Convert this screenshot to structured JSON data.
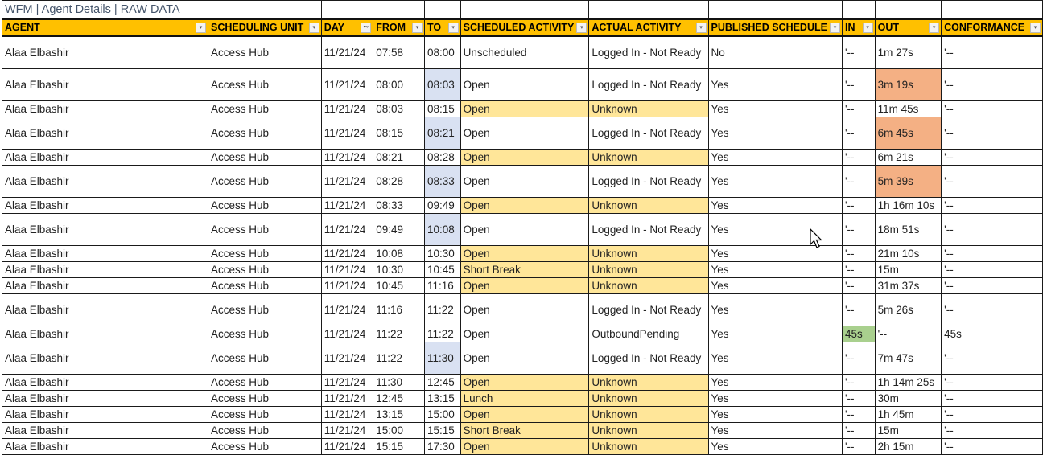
{
  "title": "WFM | Agent Details | RAW DATA",
  "columns": [
    "AGENT",
    "SCHEDULING UNIT",
    "DAY",
    "FROM",
    "TO",
    "SCHEDULED ACTIVITY",
    "ACTUAL ACTIVITY",
    "PUBLISHED SCHEDULE",
    "IN",
    "OUT",
    "CONFORMANCE"
  ],
  "filtered_column": "DAY",
  "colors": {
    "header": "#FFC000",
    "highlight_yellow": "#FFE699",
    "highlight_blue": "#D9E1F2",
    "highlight_orange": "#F4B084",
    "highlight_green": "#A9D08E",
    "title": "#44546A"
  },
  "rows": [
    {
      "agent": "Alaa Elbashir",
      "unit": "Access Hub",
      "day": "11/21/24",
      "from": "07:58",
      "to": "08:00",
      "scheduled": "Unscheduled",
      "actual": "Logged In - Not Ready",
      "published": "No",
      "in": "'--",
      "out": "1m 27s",
      "conformance": "'--"
    },
    {
      "agent": "Alaa Elbashir",
      "unit": "Access Hub",
      "day": "11/21/24",
      "from": "08:00",
      "to": "08:03",
      "scheduled": "Open",
      "actual": "Logged In - Not Ready",
      "published": "Yes",
      "in": "'--",
      "out": "3m 19s",
      "conformance": "'--"
    },
    {
      "agent": "Alaa Elbashir",
      "unit": "Access Hub",
      "day": "11/21/24",
      "from": "08:03",
      "to": "08:15",
      "scheduled": "Open",
      "actual": "Unknown",
      "published": "Yes",
      "in": "'--",
      "out": "11m 45s",
      "conformance": "'--"
    },
    {
      "agent": "Alaa Elbashir",
      "unit": "Access Hub",
      "day": "11/21/24",
      "from": "08:15",
      "to": "08:21",
      "scheduled": "Open",
      "actual": "Logged In - Not Ready",
      "published": "Yes",
      "in": "'--",
      "out": "6m 45s",
      "conformance": "'--"
    },
    {
      "agent": "Alaa Elbashir",
      "unit": "Access Hub",
      "day": "11/21/24",
      "from": "08:21",
      "to": "08:28",
      "scheduled": "Open",
      "actual": "Unknown",
      "published": "Yes",
      "in": "'--",
      "out": "6m 21s",
      "conformance": "'--"
    },
    {
      "agent": "Alaa Elbashir",
      "unit": "Access Hub",
      "day": "11/21/24",
      "from": "08:28",
      "to": "08:33",
      "scheduled": "Open",
      "actual": "Logged In - Not Ready",
      "published": "Yes",
      "in": "'--",
      "out": "5m 39s",
      "conformance": "'--"
    },
    {
      "agent": "Alaa Elbashir",
      "unit": "Access Hub",
      "day": "11/21/24",
      "from": "08:33",
      "to": "09:49",
      "scheduled": "Open",
      "actual": "Unknown",
      "published": "Yes",
      "in": "'--",
      "out": "1h 16m 10s",
      "conformance": "'--"
    },
    {
      "agent": "Alaa Elbashir",
      "unit": "Access Hub",
      "day": "11/21/24",
      "from": "09:49",
      "to": "10:08",
      "scheduled": "Open",
      "actual": "Logged In - Not Ready",
      "published": "Yes",
      "in": "'--",
      "out": "18m 51s",
      "conformance": "'--"
    },
    {
      "agent": "Alaa Elbashir",
      "unit": "Access Hub",
      "day": "11/21/24",
      "from": "10:08",
      "to": "10:30",
      "scheduled": "Open",
      "actual": "Unknown",
      "published": "Yes",
      "in": "'--",
      "out": "21m 10s",
      "conformance": "'--"
    },
    {
      "agent": "Alaa Elbashir",
      "unit": "Access Hub",
      "day": "11/21/24",
      "from": "10:30",
      "to": "10:45",
      "scheduled": "Short Break",
      "actual": "Unknown",
      "published": "Yes",
      "in": "'--",
      "out": "15m",
      "conformance": "'--"
    },
    {
      "agent": "Alaa Elbashir",
      "unit": "Access Hub",
      "day": "11/21/24",
      "from": "10:45",
      "to": "11:16",
      "scheduled": "Open",
      "actual": "Unknown",
      "published": "Yes",
      "in": "'--",
      "out": "31m 37s",
      "conformance": "'--"
    },
    {
      "agent": "Alaa Elbashir",
      "unit": "Access Hub",
      "day": "11/21/24",
      "from": "11:16",
      "to": "11:22",
      "scheduled": "Open",
      "actual": "Logged In - Not Ready",
      "published": "Yes",
      "in": "'--",
      "out": "5m 26s",
      "conformance": "'--"
    },
    {
      "agent": "Alaa Elbashir",
      "unit": "Access Hub",
      "day": "11/21/24",
      "from": "11:22",
      "to": "11:22",
      "scheduled": "Open",
      "actual": "OutboundPending",
      "published": "Yes",
      "in": "45s",
      "out": "'--",
      "conformance": "45s"
    },
    {
      "agent": "Alaa Elbashir",
      "unit": "Access Hub",
      "day": "11/21/24",
      "from": "11:22",
      "to": "11:30",
      "scheduled": "Open",
      "actual": "Logged In - Not Ready",
      "published": "Yes",
      "in": "'--",
      "out": "7m 47s",
      "conformance": "'--"
    },
    {
      "agent": "Alaa Elbashir",
      "unit": "Access Hub",
      "day": "11/21/24",
      "from": "11:30",
      "to": "12:45",
      "scheduled": "Open",
      "actual": "Unknown",
      "published": "Yes",
      "in": "'--",
      "out": "1h 14m 25s",
      "conformance": "'--"
    },
    {
      "agent": "Alaa Elbashir",
      "unit": "Access Hub",
      "day": "11/21/24",
      "from": "12:45",
      "to": "13:15",
      "scheduled": "Lunch",
      "actual": "Unknown",
      "published": "Yes",
      "in": "'--",
      "out": "30m",
      "conformance": "'--"
    },
    {
      "agent": "Alaa Elbashir",
      "unit": "Access Hub",
      "day": "11/21/24",
      "from": "13:15",
      "to": "15:00",
      "scheduled": "Open",
      "actual": "Unknown",
      "published": "Yes",
      "in": "'--",
      "out": "1h 45m",
      "conformance": "'--"
    },
    {
      "agent": "Alaa Elbashir",
      "unit": "Access Hub",
      "day": "11/21/24",
      "from": "15:00",
      "to": "15:15",
      "scheduled": "Short Break",
      "actual": "Unknown",
      "published": "Yes",
      "in": "'--",
      "out": "15m",
      "conformance": "'--"
    },
    {
      "agent": "Alaa Elbashir",
      "unit": "Access Hub",
      "day": "11/21/24",
      "from": "15:15",
      "to": "17:30",
      "scheduled": "Open",
      "actual": "Unknown",
      "published": "Yes",
      "in": "'--",
      "out": "2h 15m",
      "conformance": "'--"
    }
  ]
}
